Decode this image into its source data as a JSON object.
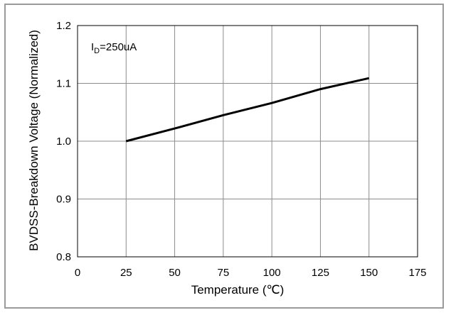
{
  "chart_data": {
    "type": "line",
    "title": "",
    "xlabel": "Temperature (℃)",
    "ylabel": "BVDSS-Breakdown Voltage (Normalized)",
    "xlim": [
      0,
      175
    ],
    "ylim": [
      0.8,
      1.2
    ],
    "xticks": [
      0,
      25,
      50,
      75,
      100,
      125,
      150,
      175
    ],
    "yticks": [
      "0.8",
      "0.9",
      "1.0",
      "1.1",
      "1.2"
    ],
    "grid": true,
    "annotation": {
      "main": "I",
      "sub": "D",
      "rest": "=250uA"
    },
    "series": [
      {
        "x": [
          25,
          50,
          75,
          100,
          125,
          150
        ],
        "y": [
          1.0,
          1.022,
          1.045,
          1.066,
          1.09,
          1.109
        ],
        "color": "#000000"
      }
    ]
  }
}
